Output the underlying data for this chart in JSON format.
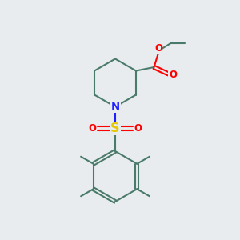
{
  "bg_color": "#e8ecee",
  "bond_color": "#4a7a6a",
  "n_color": "#2020ff",
  "o_color": "#ff0000",
  "s_color": "#e6c800",
  "line_width": 1.5,
  "font_size": 8.5,
  "figsize": [
    3.0,
    3.0
  ],
  "dpi": 100,
  "xlim": [
    0,
    10
  ],
  "ylim": [
    0,
    10
  ]
}
